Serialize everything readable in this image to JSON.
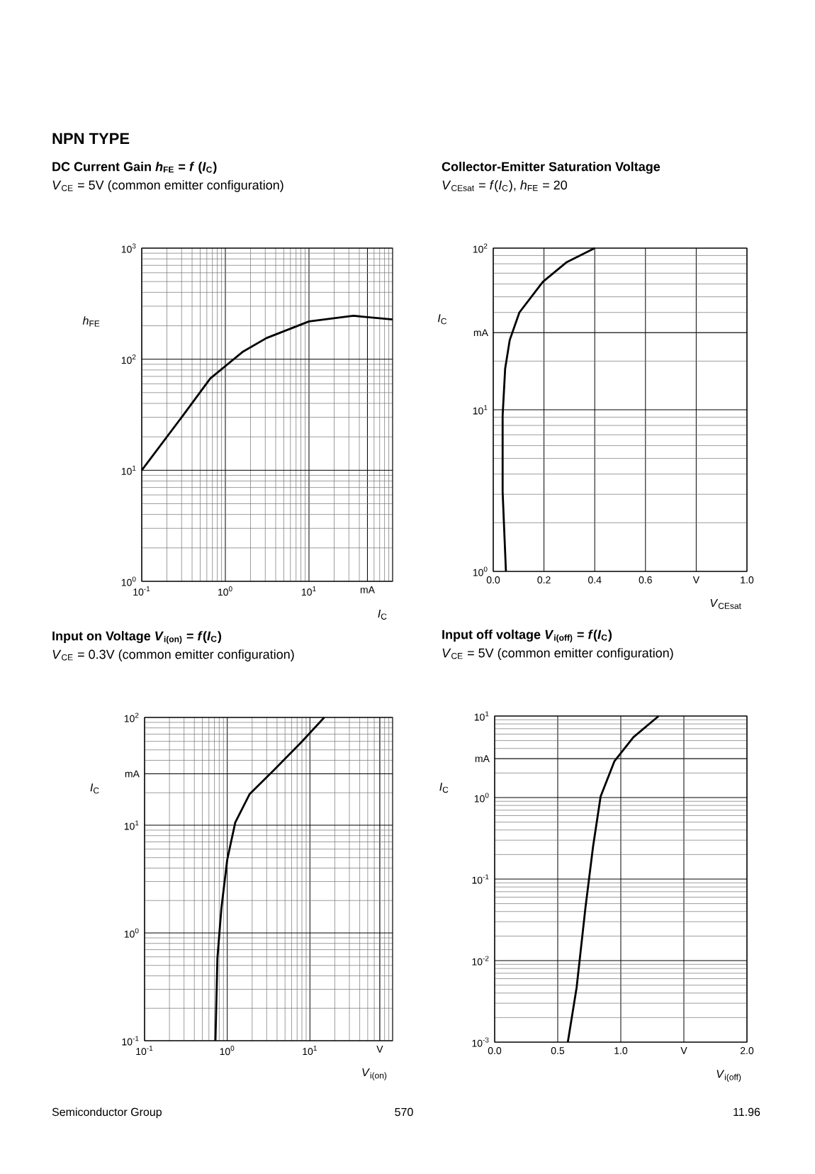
{
  "chart_data": [
    {
      "type": "line",
      "title": "DC Current Gain *h*$_{FE}$ = *f* (*I*$_{C}$)",
      "subtitle": "*V*$_{CE}$ = 5V (common emitter configuration)",
      "xlabel": "*I*$_{C}$",
      "ylabel": "*h*$_{FE}$",
      "annotations": [
        "NPN TYPE"
      ],
      "log": "xy",
      "grid": true,
      "color": "#000000",
      "xlim": [
        0.1,
        100
      ],
      "ylim": [
        1,
        1000
      ],
      "xticks": [
        {
          "value": 0.1,
          "label": "10$^{-1}$"
        },
        {
          "value": 1,
          "label": "10$^{0}$"
        },
        {
          "value": 10,
          "label": "10$^{1}$"
        },
        {
          "value": 50,
          "label": "mA"
        }
      ],
      "yticks": [
        {
          "value": 1,
          "label": "10$^{0}$"
        },
        {
          "value": 10,
          "label": "10$^{1}$"
        },
        {
          "value": 100,
          "label": "10$^{2}$"
        },
        {
          "value": 1000,
          "label": "10$^{3}$"
        }
      ],
      "x": [
        0.1,
        0.31,
        0.66,
        1.6,
        3.1,
        10,
        34,
        100
      ],
      "values": [
        10,
        31,
        67,
        116,
        155,
        219,
        246,
        228
      ]
    },
    {
      "type": "line",
      "title": "Collector-Emitter Saturation Voltage",
      "subtitle": "*V*$_{CEsat}$ = *f*(*I*$_{C}$), *h*$_{FE}$ = 20",
      "xlabel": "*V*$_{CEsat}$",
      "ylabel": "*I*$_{C}$",
      "log": "y",
      "grid": true,
      "color": "#000000",
      "xlim": [
        0,
        1
      ],
      "ylim": [
        1,
        100
      ],
      "xticks": [
        {
          "value": 0,
          "label": "0.0"
        },
        0.2,
        0.4,
        0.6,
        {
          "value": 0.8,
          "label": "V"
        },
        {
          "value": 1,
          "label": "1.0"
        }
      ],
      "yticks": [
        {
          "value": 1,
          "label": "10$^{0}$"
        },
        {
          "value": 10,
          "label": "10$^{1}$"
        },
        {
          "value": 30,
          "label": "mA"
        },
        {
          "value": 100,
          "label": "10$^{2}$"
        }
      ],
      "x": [
        0.05,
        0.037,
        0.037,
        0.047,
        0.065,
        0.103,
        0.196,
        0.29,
        0.4
      ],
      "values": [
        1,
        3.1,
        9.2,
        18,
        27,
        40,
        62,
        82,
        100
      ]
    },
    {
      "type": "line",
      "title": "Input on Voltage *V*$_{i(on)}$ = *f*(*I*$_{C}$)",
      "subtitle": "*V*$_{CE}$ = 0.3V (common emitter configuration)",
      "xlabel": "*V*$_{i(on)}$",
      "ylabel": "*I*$_{C}$",
      "log": "xy",
      "grid": true,
      "color": "#000000",
      "xlim": [
        0.1,
        100
      ],
      "ylim": [
        0.1,
        100
      ],
      "xticks": [
        {
          "value": 0.1,
          "label": "10$^{-1}$"
        },
        {
          "value": 1,
          "label": "10$^{0}$"
        },
        {
          "value": 10,
          "label": "10$^{1}$"
        },
        {
          "value": 70,
          "label": "V"
        }
      ],
      "yticks": [
        {
          "value": 0.1,
          "label": "10$^{-1}$"
        },
        {
          "value": 1,
          "label": "10$^{0}$"
        },
        {
          "value": 10,
          "label": "10$^{1}$"
        },
        {
          "value": 30,
          "label": "mA"
        },
        {
          "value": 100,
          "label": "10$^{2}$"
        }
      ],
      "x": [
        0.72,
        0.76,
        0.85,
        1.0,
        1.25,
        1.86,
        3.6,
        7.9,
        14.9
      ],
      "values": [
        0.1,
        0.58,
        1.7,
        4.8,
        10.6,
        19.4,
        32,
        59,
        100
      ]
    },
    {
      "type": "line",
      "title": "Input off voltage *V*$_{i(off)}$ = *f*(*I*$_{C}$)",
      "subtitle": "*V*$_{CE}$ = 5V (common emitter configuration)",
      "xlabel": "*V*$_{i(off)}$",
      "ylabel": "*I*$_{C}$",
      "annotations": [
        "Semiconductor Group",
        "570",
        "11.96"
      ],
      "log": "y",
      "grid": true,
      "color": "#000000",
      "xlim": [
        0,
        2
      ],
      "ylim": [
        0.001,
        10
      ],
      "xticks": [
        {
          "value": 0,
          "label": "0.0"
        },
        0.5,
        {
          "value": 1,
          "label": "1.0"
        },
        {
          "value": 1.5,
          "label": "V"
        },
        {
          "value": 2,
          "label": "2.0"
        }
      ],
      "yticks": [
        {
          "value": 0.001,
          "label": "10$^{-3}$"
        },
        {
          "value": 0.01,
          "label": "10$^{-2}$"
        },
        {
          "value": 0.1,
          "label": "10$^{-1}$"
        },
        {
          "value": 1,
          "label": "10$^{0}$"
        },
        {
          "value": 3,
          "label": "mA"
        },
        {
          "value": 10,
          "label": "10$^{1}$"
        }
      ],
      "x": [
        0.58,
        0.65,
        0.72,
        0.78,
        0.84,
        0.95,
        1.1,
        1.3
      ],
      "values": [
        0.001,
        0.0047,
        0.045,
        0.25,
        1.03,
        2.8,
        5.5,
        10
      ]
    }
  ]
}
